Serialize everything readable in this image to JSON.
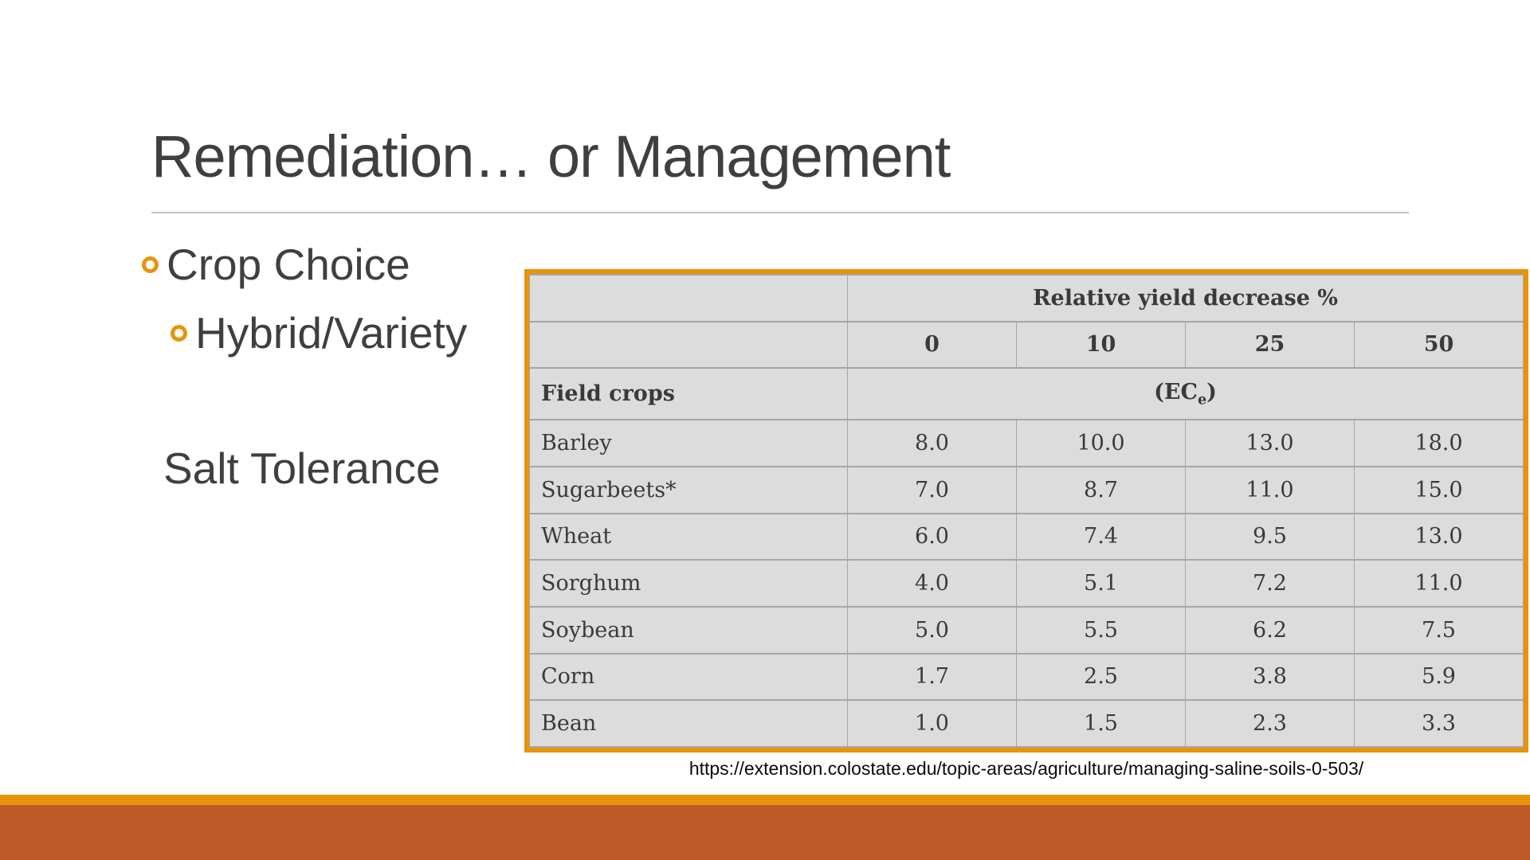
{
  "slide": {
    "title": "Remediation… or Management",
    "bullets": [
      {
        "label": "Crop Choice",
        "level": 1
      },
      {
        "label": "Hybrid/Variety",
        "level": 2
      }
    ],
    "subtext": "Salt Tolerance",
    "source_url": "https://extension.colostate.edu/topic-areas/agriculture/managing-saline-soils-0-503/"
  },
  "table": {
    "group_header": "Relative yield decrease %",
    "levels": [
      "0",
      "10",
      "25",
      "50"
    ],
    "row_header": "Field crops",
    "unit_prefix": "(EC",
    "unit_sub": "e",
    "unit_suffix": ")",
    "rows": [
      {
        "crop": "Barley",
        "values": [
          "8.0",
          "10.0",
          "13.0",
          "18.0"
        ]
      },
      {
        "crop": "Sugarbeets*",
        "values": [
          "7.0",
          "8.7",
          "11.0",
          "15.0"
        ]
      },
      {
        "crop": "Wheat",
        "values": [
          "6.0",
          "7.4",
          "9.5",
          "13.0"
        ]
      },
      {
        "crop": "Sorghum",
        "values": [
          "4.0",
          "5.1",
          "7.2",
          "11.0"
        ]
      },
      {
        "crop": "Soybean",
        "values": [
          "5.0",
          "5.5",
          "6.2",
          "7.5"
        ]
      },
      {
        "crop": "Corn",
        "values": [
          "1.7",
          "2.5",
          "3.8",
          "5.9"
        ]
      },
      {
        "crop": "Bean",
        "values": [
          "1.0",
          "1.5",
          "2.3",
          "3.3"
        ]
      }
    ]
  },
  "chart_data": {
    "type": "table",
    "title": "Salt Tolerance",
    "column_group": "Relative yield decrease %",
    "columns": [
      "Field crops",
      "0",
      "10",
      "25",
      "50"
    ],
    "unit": "(ECe)",
    "rows": [
      [
        "Barley",
        8.0,
        10.0,
        13.0,
        18.0
      ],
      [
        "Sugarbeets*",
        7.0,
        8.7,
        11.0,
        15.0
      ],
      [
        "Wheat",
        6.0,
        7.4,
        9.5,
        13.0
      ],
      [
        "Sorghum",
        4.0,
        5.1,
        7.2,
        11.0
      ],
      [
        "Soybean",
        5.0,
        5.5,
        6.2,
        7.5
      ],
      [
        "Corn",
        1.7,
        2.5,
        3.8,
        5.9
      ],
      [
        "Bean",
        1.0,
        1.5,
        2.3,
        3.3
      ]
    ]
  },
  "colors": {
    "accent_orange": "#e8930c",
    "footer_dark_orange": "#bd5a28",
    "table_background": "#dcdcdc",
    "table_border": "#a6a6a6",
    "text_dark": "#3f3f3f"
  }
}
